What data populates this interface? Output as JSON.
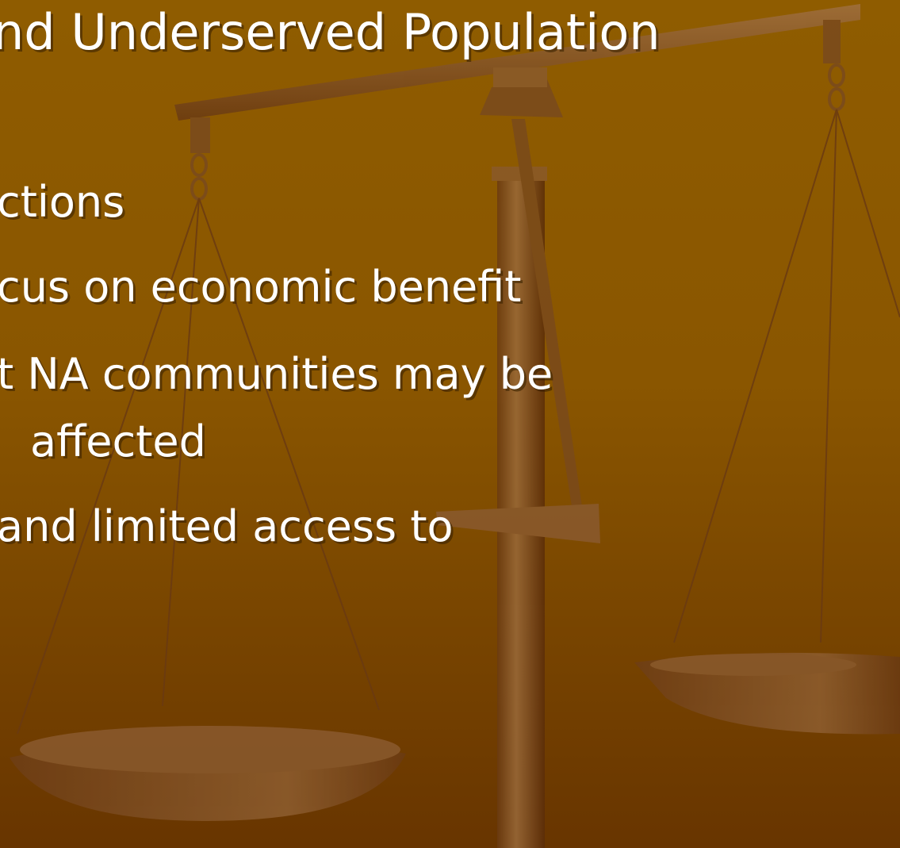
{
  "title": "nd Underserved Population",
  "bullets": [
    {
      "lines": [
        "ctions"
      ]
    },
    {
      "lines": [
        "cus on economic benefit"
      ]
    },
    {
      "lines": [
        "t NA communities may be",
        "affected"
      ]
    },
    {
      "lines": [
        "and limited access to"
      ]
    }
  ]
}
